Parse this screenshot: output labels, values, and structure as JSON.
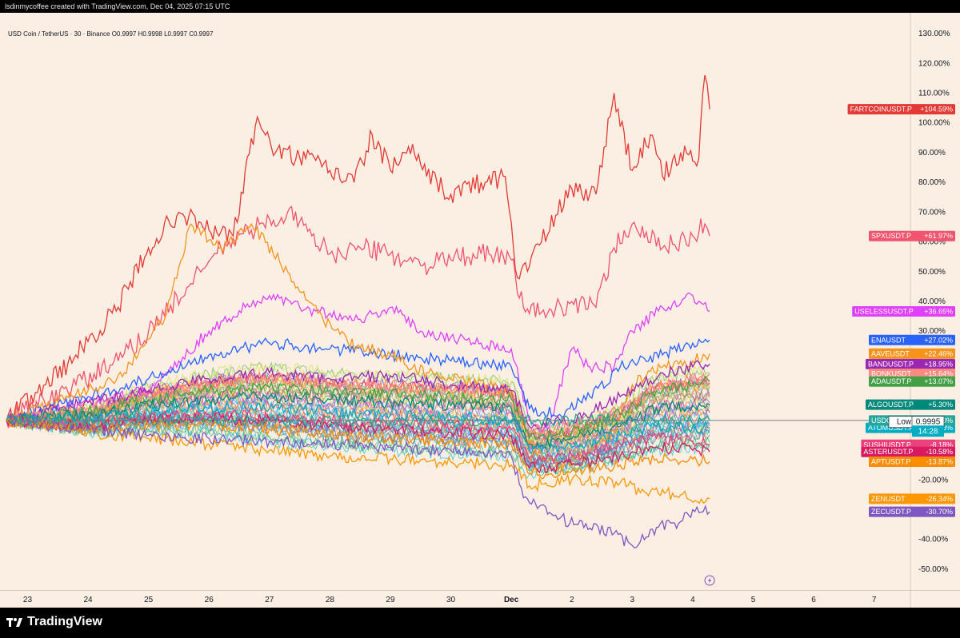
{
  "header": {
    "attribution": "lsdinmycoffee created with TradingView.com, Dec 04, 2025 07:15 UTC",
    "symbol_info": "USD Coin / TetherUS · 30 · Binance  O0.9997  H0.9998  L0.9997  C0.9997"
  },
  "footer": {
    "logo_text": "TradingView"
  },
  "colors": {
    "background": "#fbeee3",
    "up": "#26a69a",
    "accent_red": "#e53935"
  },
  "chart_data": {
    "type": "line",
    "y_unit": "%",
    "ylim": [
      -57,
      137
    ],
    "y_ticks": [
      "130.00%",
      "120.00%",
      "110.00%",
      "100.00%",
      "90.00%",
      "80.00%",
      "70.00%",
      "60.00%",
      "50.00%",
      "40.00%",
      "30.00%",
      "-20.00%",
      "-40.00%",
      "-50.00%"
    ],
    "y_tick_values": [
      130,
      120,
      110,
      100,
      90,
      80,
      70,
      60,
      50,
      40,
      30,
      -20,
      -40,
      -50
    ],
    "x_ticks": [
      "23",
      "24",
      "25",
      "26",
      "27",
      "28",
      "29",
      "30",
      "Dec",
      "2",
      "3",
      "4",
      "5",
      "6",
      "7"
    ],
    "x_tick_values": [
      0,
      1,
      2,
      3,
      4,
      5,
      6,
      7,
      8,
      9,
      10,
      11,
      12,
      13,
      14
    ],
    "xlim": [
      -0.35,
      14.6
    ],
    "x_last": 11.28,
    "zero_line": 0,
    "low_label": "Low",
    "low_value": "0.9995",
    "countdown": "14:28",
    "series": [
      {
        "name": "FARTCOINUSDT.P",
        "last": "+104.59%",
        "color": "#e53935",
        "pts": [
          [
            -0.35,
            0
          ],
          [
            0.3,
            12
          ],
          [
            0.8,
            22
          ],
          [
            1.5,
            38
          ],
          [
            2,
            58
          ],
          [
            2.5,
            70
          ],
          [
            3,
            64
          ],
          [
            3.4,
            62
          ],
          [
            3.8,
            102
          ],
          [
            4.1,
            90
          ],
          [
            4.6,
            88
          ],
          [
            5,
            84
          ],
          [
            5.4,
            80
          ],
          [
            5.7,
            96
          ],
          [
            6,
            84
          ],
          [
            6.3,
            92
          ],
          [
            6.6,
            82
          ],
          [
            7,
            76
          ],
          [
            7.5,
            80
          ],
          [
            7.9,
            82
          ],
          [
            8.1,
            48
          ],
          [
            8.5,
            60
          ],
          [
            9,
            78
          ],
          [
            9.4,
            76
          ],
          [
            9.7,
            110
          ],
          [
            10,
            84
          ],
          [
            10.3,
            96
          ],
          [
            10.5,
            82
          ],
          [
            10.8,
            90
          ],
          [
            11.1,
            88
          ],
          [
            11.2,
            116
          ],
          [
            11.28,
            104.59
          ]
        ]
      },
      {
        "name": "SPXUSDT.P",
        "last": "+61.97%",
        "color": "#f0546e",
        "pts": [
          [
            -0.35,
            0
          ],
          [
            0.8,
            12
          ],
          [
            1.5,
            20
          ],
          [
            2,
            30
          ],
          [
            2.7,
            46
          ],
          [
            3.2,
            58
          ],
          [
            3.7,
            64
          ],
          [
            4.3,
            70
          ],
          [
            4.7,
            62
          ],
          [
            5,
            56
          ],
          [
            5.5,
            58
          ],
          [
            6,
            56
          ],
          [
            6.5,
            52
          ],
          [
            7,
            54
          ],
          [
            7.5,
            56
          ],
          [
            8,
            54
          ],
          [
            8.2,
            38
          ],
          [
            8.6,
            36
          ],
          [
            9,
            40
          ],
          [
            9.4,
            38
          ],
          [
            9.7,
            58
          ],
          [
            10,
            66
          ],
          [
            10.5,
            58
          ],
          [
            11,
            62
          ],
          [
            11.2,
            66
          ],
          [
            11.28,
            61.97
          ]
        ]
      },
      {
        "name": "USELESSUSDT.P",
        "last": "+36.65%",
        "color": "#e040fb",
        "pts": [
          [
            -0.35,
            0
          ],
          [
            1,
            6
          ],
          [
            2,
            10
          ],
          [
            3,
            30
          ],
          [
            3.6,
            38
          ],
          [
            4,
            42
          ],
          [
            4.5,
            38
          ],
          [
            5,
            36
          ],
          [
            5.5,
            34
          ],
          [
            6,
            38
          ],
          [
            6.5,
            30
          ],
          [
            7,
            28
          ],
          [
            7.5,
            26
          ],
          [
            8,
            24
          ],
          [
            8.3,
            0
          ],
          [
            8.6,
            -3
          ],
          [
            9,
            24
          ],
          [
            9.3,
            18
          ],
          [
            9.7,
            18
          ],
          [
            10,
            30
          ],
          [
            10.5,
            38
          ],
          [
            11,
            42
          ],
          [
            11.28,
            36.65
          ]
        ]
      },
      {
        "name": "ENAUSDT",
        "last": "+27.02%",
        "color": "#2962ff",
        "pts": [
          [
            -0.35,
            0
          ],
          [
            1,
            8
          ],
          [
            2,
            14
          ],
          [
            3,
            22
          ],
          [
            4,
            26
          ],
          [
            5,
            24
          ],
          [
            6,
            22
          ],
          [
            7,
            20
          ],
          [
            8,
            18
          ],
          [
            8.3,
            4
          ],
          [
            8.8,
            2
          ],
          [
            9.3,
            8
          ],
          [
            9.8,
            18
          ],
          [
            10.5,
            22
          ],
          [
            11,
            26
          ],
          [
            11.28,
            27.02
          ]
        ]
      },
      {
        "name": "AAVEUSDT",
        "last": "+22.46%",
        "color": "#f7931a",
        "pts": [
          [
            -0.35,
            0
          ],
          [
            1,
            10
          ],
          [
            1.6,
            16
          ],
          [
            2.3,
            36
          ],
          [
            2.7,
            66
          ],
          [
            3.2,
            58
          ],
          [
            3.7,
            66
          ],
          [
            4.3,
            50
          ],
          [
            4.8,
            36
          ],
          [
            5.3,
            26
          ],
          [
            6,
            22
          ],
          [
            6.6,
            16
          ],
          [
            7,
            14
          ],
          [
            8,
            10
          ],
          [
            8.3,
            -8
          ],
          [
            8.8,
            -16
          ],
          [
            9.3,
            -10
          ],
          [
            9.7,
            -4
          ],
          [
            10,
            12
          ],
          [
            10.5,
            18
          ],
          [
            11,
            20
          ],
          [
            11.28,
            22.46
          ]
        ]
      },
      {
        "name": "BANDUSDT.P",
        "last": "+18.95%",
        "color": "#9c27b0",
        "pts": [
          [
            -0.35,
            0
          ],
          [
            1,
            6
          ],
          [
            2,
            10
          ],
          [
            3,
            14
          ],
          [
            4,
            16
          ],
          [
            5,
            14
          ],
          [
            6,
            15
          ],
          [
            7,
            12
          ],
          [
            8,
            10
          ],
          [
            8.3,
            -2
          ],
          [
            9,
            0
          ],
          [
            9.8,
            8
          ],
          [
            10.5,
            16
          ],
          [
            11,
            18
          ],
          [
            11.28,
            18.95
          ]
        ]
      },
      {
        "name": "BONKUSDT",
        "last": "+15.64%",
        "color": "#ff8a80",
        "pts": [
          [
            -0.35,
            0
          ],
          [
            1,
            4
          ],
          [
            2,
            8
          ],
          [
            3,
            12
          ],
          [
            4,
            14
          ],
          [
            5,
            12
          ],
          [
            6,
            11
          ],
          [
            7,
            10
          ],
          [
            8,
            8
          ],
          [
            8.3,
            -4
          ],
          [
            9,
            -2
          ],
          [
            9.8,
            4
          ],
          [
            10.5,
            12
          ],
          [
            11,
            14
          ],
          [
            11.28,
            15.64
          ]
        ]
      },
      {
        "name": "ADAUSDT.P",
        "last": "+13.07%",
        "color": "#43a047",
        "pts": [
          [
            -0.35,
            0
          ],
          [
            1,
            3
          ],
          [
            2,
            7
          ],
          [
            3,
            10
          ],
          [
            4,
            11
          ],
          [
            5,
            10
          ],
          [
            6,
            9
          ],
          [
            7,
            8
          ],
          [
            8,
            7
          ],
          [
            8.3,
            -6
          ],
          [
            9,
            -4
          ],
          [
            9.8,
            2
          ],
          [
            10.4,
            10
          ],
          [
            11,
            12
          ],
          [
            11.28,
            13.07
          ]
        ]
      },
      {
        "name": "ALGOUSDT.P",
        "last": "+5.30%",
        "color": "#00897b",
        "pts": [
          [
            -0.35,
            0
          ],
          [
            1,
            2
          ],
          [
            2,
            5
          ],
          [
            3,
            7
          ],
          [
            4,
            8
          ],
          [
            5,
            7
          ],
          [
            6,
            6
          ],
          [
            7,
            5
          ],
          [
            8,
            4
          ],
          [
            8.3,
            -8
          ],
          [
            9,
            -6
          ],
          [
            9.8,
            -2
          ],
          [
            10.4,
            4
          ],
          [
            11,
            5
          ],
          [
            11.28,
            5.3
          ]
        ]
      },
      {
        "name": "ATOMUSDT.P",
        "last": "-2.48%",
        "color": "#00acc1",
        "pts": [
          [
            -0.35,
            0
          ],
          [
            1,
            1
          ],
          [
            2,
            3
          ],
          [
            3,
            4
          ],
          [
            4,
            4
          ],
          [
            5,
            3
          ],
          [
            6,
            2
          ],
          [
            7,
            1
          ],
          [
            8,
            0
          ],
          [
            8.3,
            -10
          ],
          [
            9,
            -9
          ],
          [
            9.8,
            -5
          ],
          [
            10.4,
            -2
          ],
          [
            11,
            -2
          ],
          [
            11.28,
            -2.48
          ]
        ]
      },
      {
        "name": "SUSHIUSDT.P",
        "last": "-8.18%",
        "color": "#ec407a",
        "pts": [
          [
            -0.35,
            0
          ],
          [
            1,
            -1
          ],
          [
            2,
            1
          ],
          [
            3,
            2
          ],
          [
            4,
            1
          ],
          [
            5,
            0
          ],
          [
            6,
            -1
          ],
          [
            7,
            -2
          ],
          [
            8,
            -3
          ],
          [
            8.3,
            -13
          ],
          [
            9,
            -12
          ],
          [
            9.8,
            -8
          ],
          [
            10.4,
            -6
          ],
          [
            11,
            -7
          ],
          [
            11.28,
            -8.18
          ]
        ]
      },
      {
        "name": "ASTERUSDT.P",
        "last": "-10.58%",
        "color": "#d81b60",
        "pts": [
          [
            -0.35,
            0
          ],
          [
            1,
            -2
          ],
          [
            2,
            0
          ],
          [
            3,
            1
          ],
          [
            4,
            0
          ],
          [
            5,
            -2
          ],
          [
            6,
            -3
          ],
          [
            7,
            -4
          ],
          [
            8,
            -5
          ],
          [
            8.3,
            -16
          ],
          [
            9,
            -15
          ],
          [
            9.8,
            -12
          ],
          [
            10.4,
            -9
          ],
          [
            11,
            -10
          ],
          [
            11.28,
            -10.58
          ]
        ]
      },
      {
        "name": "APTUSDT.P",
        "last": "-13.87%",
        "color": "#fb8c00",
        "pts": [
          [
            -0.35,
            0
          ],
          [
            1,
            -3
          ],
          [
            2,
            -2
          ],
          [
            3,
            -1
          ],
          [
            4,
            -3
          ],
          [
            5,
            -5
          ],
          [
            6,
            -6
          ],
          [
            7,
            -7
          ],
          [
            8,
            -8
          ],
          [
            8.3,
            -18
          ],
          [
            9,
            -17
          ],
          [
            9.8,
            -15
          ],
          [
            10.4,
            -13
          ],
          [
            11,
            -13
          ],
          [
            11.28,
            -13.87
          ]
        ]
      },
      {
        "name": "ZENUSDT",
        "last": "-26.34%",
        "color": "#ff9800",
        "pts": [
          [
            -0.35,
            0
          ],
          [
            1,
            -4
          ],
          [
            2,
            -6
          ],
          [
            3,
            -8
          ],
          [
            4,
            -10
          ],
          [
            5,
            -12
          ],
          [
            6,
            -13
          ],
          [
            7,
            -14
          ],
          [
            8,
            -15
          ],
          [
            8.3,
            -22
          ],
          [
            9,
            -20
          ],
          [
            9.8,
            -21
          ],
          [
            10.2,
            -24
          ],
          [
            10.8,
            -25
          ],
          [
            11.28,
            -26.34
          ]
        ]
      },
      {
        "name": "ZECUSDT.P",
        "last": "-30.70%",
        "color": "#7e57c2",
        "pts": [
          [
            -0.35,
            0
          ],
          [
            1,
            -3
          ],
          [
            2,
            -5
          ],
          [
            3,
            -6
          ],
          [
            4,
            -7
          ],
          [
            5,
            -8
          ],
          [
            6,
            -9
          ],
          [
            7,
            -10
          ],
          [
            8,
            -12
          ],
          [
            8.2,
            -26
          ],
          [
            8.7,
            -32
          ],
          [
            9.2,
            -36
          ],
          [
            9.7,
            -38
          ],
          [
            10,
            -42
          ],
          [
            10.4,
            -36
          ],
          [
            10.8,
            -34
          ],
          [
            11,
            -30
          ],
          [
            11.28,
            -30.7
          ]
        ]
      },
      {
        "name": "USDC",
        "last": "0.00%",
        "color": "#26a69a",
        "pts": [
          [
            -0.35,
            0
          ],
          [
            3,
            0.2
          ],
          [
            6,
            -0.2
          ],
          [
            9,
            0.1
          ],
          [
            11.28,
            0
          ]
        ]
      }
    ]
  }
}
